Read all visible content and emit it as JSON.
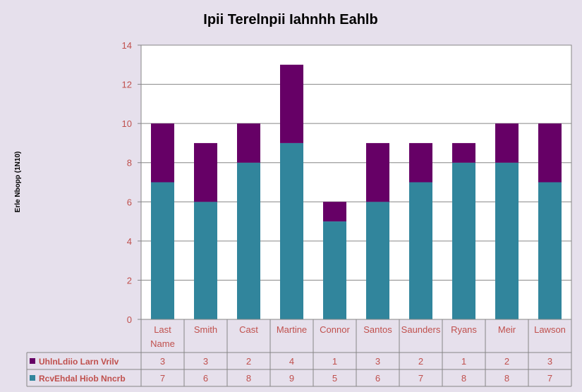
{
  "chart_data": {
    "type": "bar",
    "stacked": true,
    "title": "Ipii Terelnpii Iahnhh Eahlb",
    "ylabel": "Erle Nbopp (1N10)",
    "xlabel": "",
    "ylim": [
      0,
      14
    ],
    "yticks": [
      0,
      2,
      4,
      6,
      8,
      10,
      12,
      14
    ],
    "grid": true,
    "legend_placement": "data-table",
    "categories": [
      [
        "Last",
        "Name"
      ],
      [
        "Smith"
      ],
      [
        "Cast"
      ],
      [
        "Martine"
      ],
      [
        "Connor"
      ],
      [
        "Santos"
      ],
      [
        "Saunders"
      ],
      [
        "Ryans"
      ],
      [
        "Meir"
      ],
      [
        "Lawson"
      ]
    ],
    "series": [
      {
        "name": "RcvEhdal Hiob Nncrb",
        "color": "#31859c",
        "values": [
          7,
          6,
          8,
          9,
          5,
          6,
          7,
          8,
          8,
          7
        ]
      },
      {
        "name": "UhlnLdiio Larn Vrilv",
        "color": "#660066",
        "values": [
          3,
          3,
          2,
          4,
          1,
          3,
          2,
          1,
          2,
          3
        ]
      }
    ],
    "table_rows_order": [
      1,
      0
    ]
  }
}
